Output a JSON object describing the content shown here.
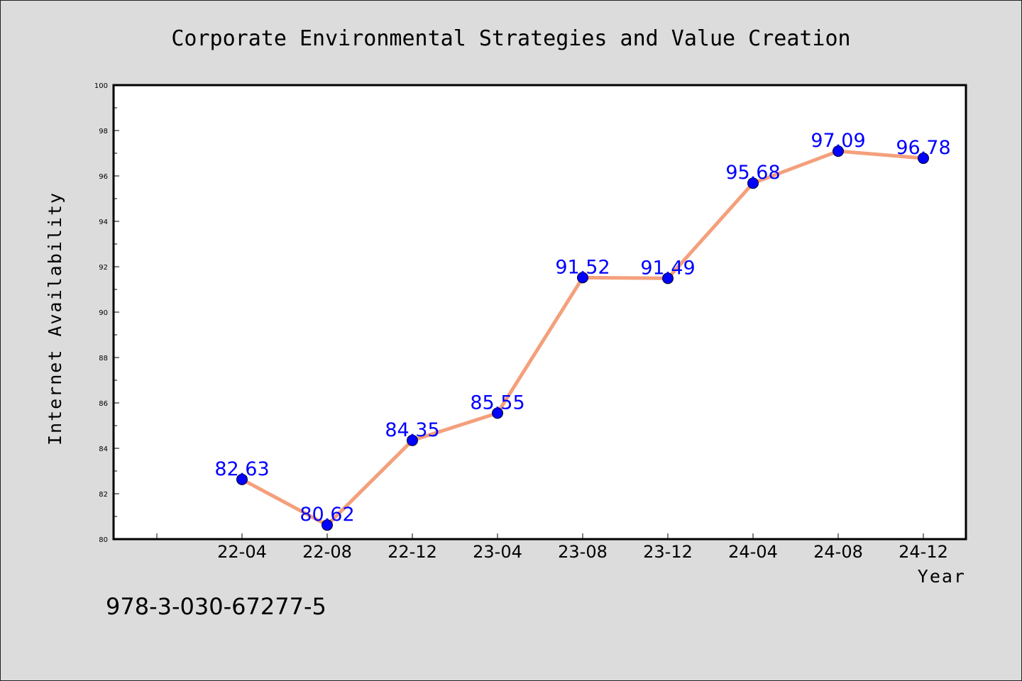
{
  "chart_data": {
    "type": "line",
    "title": "Corporate Environmental Strategies and Value Creation",
    "xlabel": "Year",
    "ylabel": "Internet Availability",
    "categories": [
      "22-04",
      "22-08",
      "22-12",
      "23-04",
      "23-08",
      "23-12",
      "24-04",
      "24-08",
      "24-12"
    ],
    "series": [
      {
        "values": [
          82.63,
          80.62,
          84.35,
          85.55,
          91.52,
          91.49,
          95.68,
          97.09,
          96.78
        ],
        "data_labels": [
          "82.63",
          "80.62",
          "84.35",
          "85.55",
          "91.52",
          "91.49",
          "95.68",
          "97.09",
          "96.78"
        ]
      }
    ],
    "ylim": [
      80,
      100
    ],
    "yticks": [
      "80",
      "82",
      "84",
      "86",
      "88",
      "90",
      "92",
      "94",
      "96",
      "98",
      "100"
    ],
    "grid": false,
    "colors": {
      "line": "#f4a07c",
      "marker": "#0000ff",
      "data_label": "#0000ff",
      "background": "#dcdcdc",
      "plot_area": "#ffffff"
    }
  },
  "footer_text": "978-3-030-67277-5"
}
